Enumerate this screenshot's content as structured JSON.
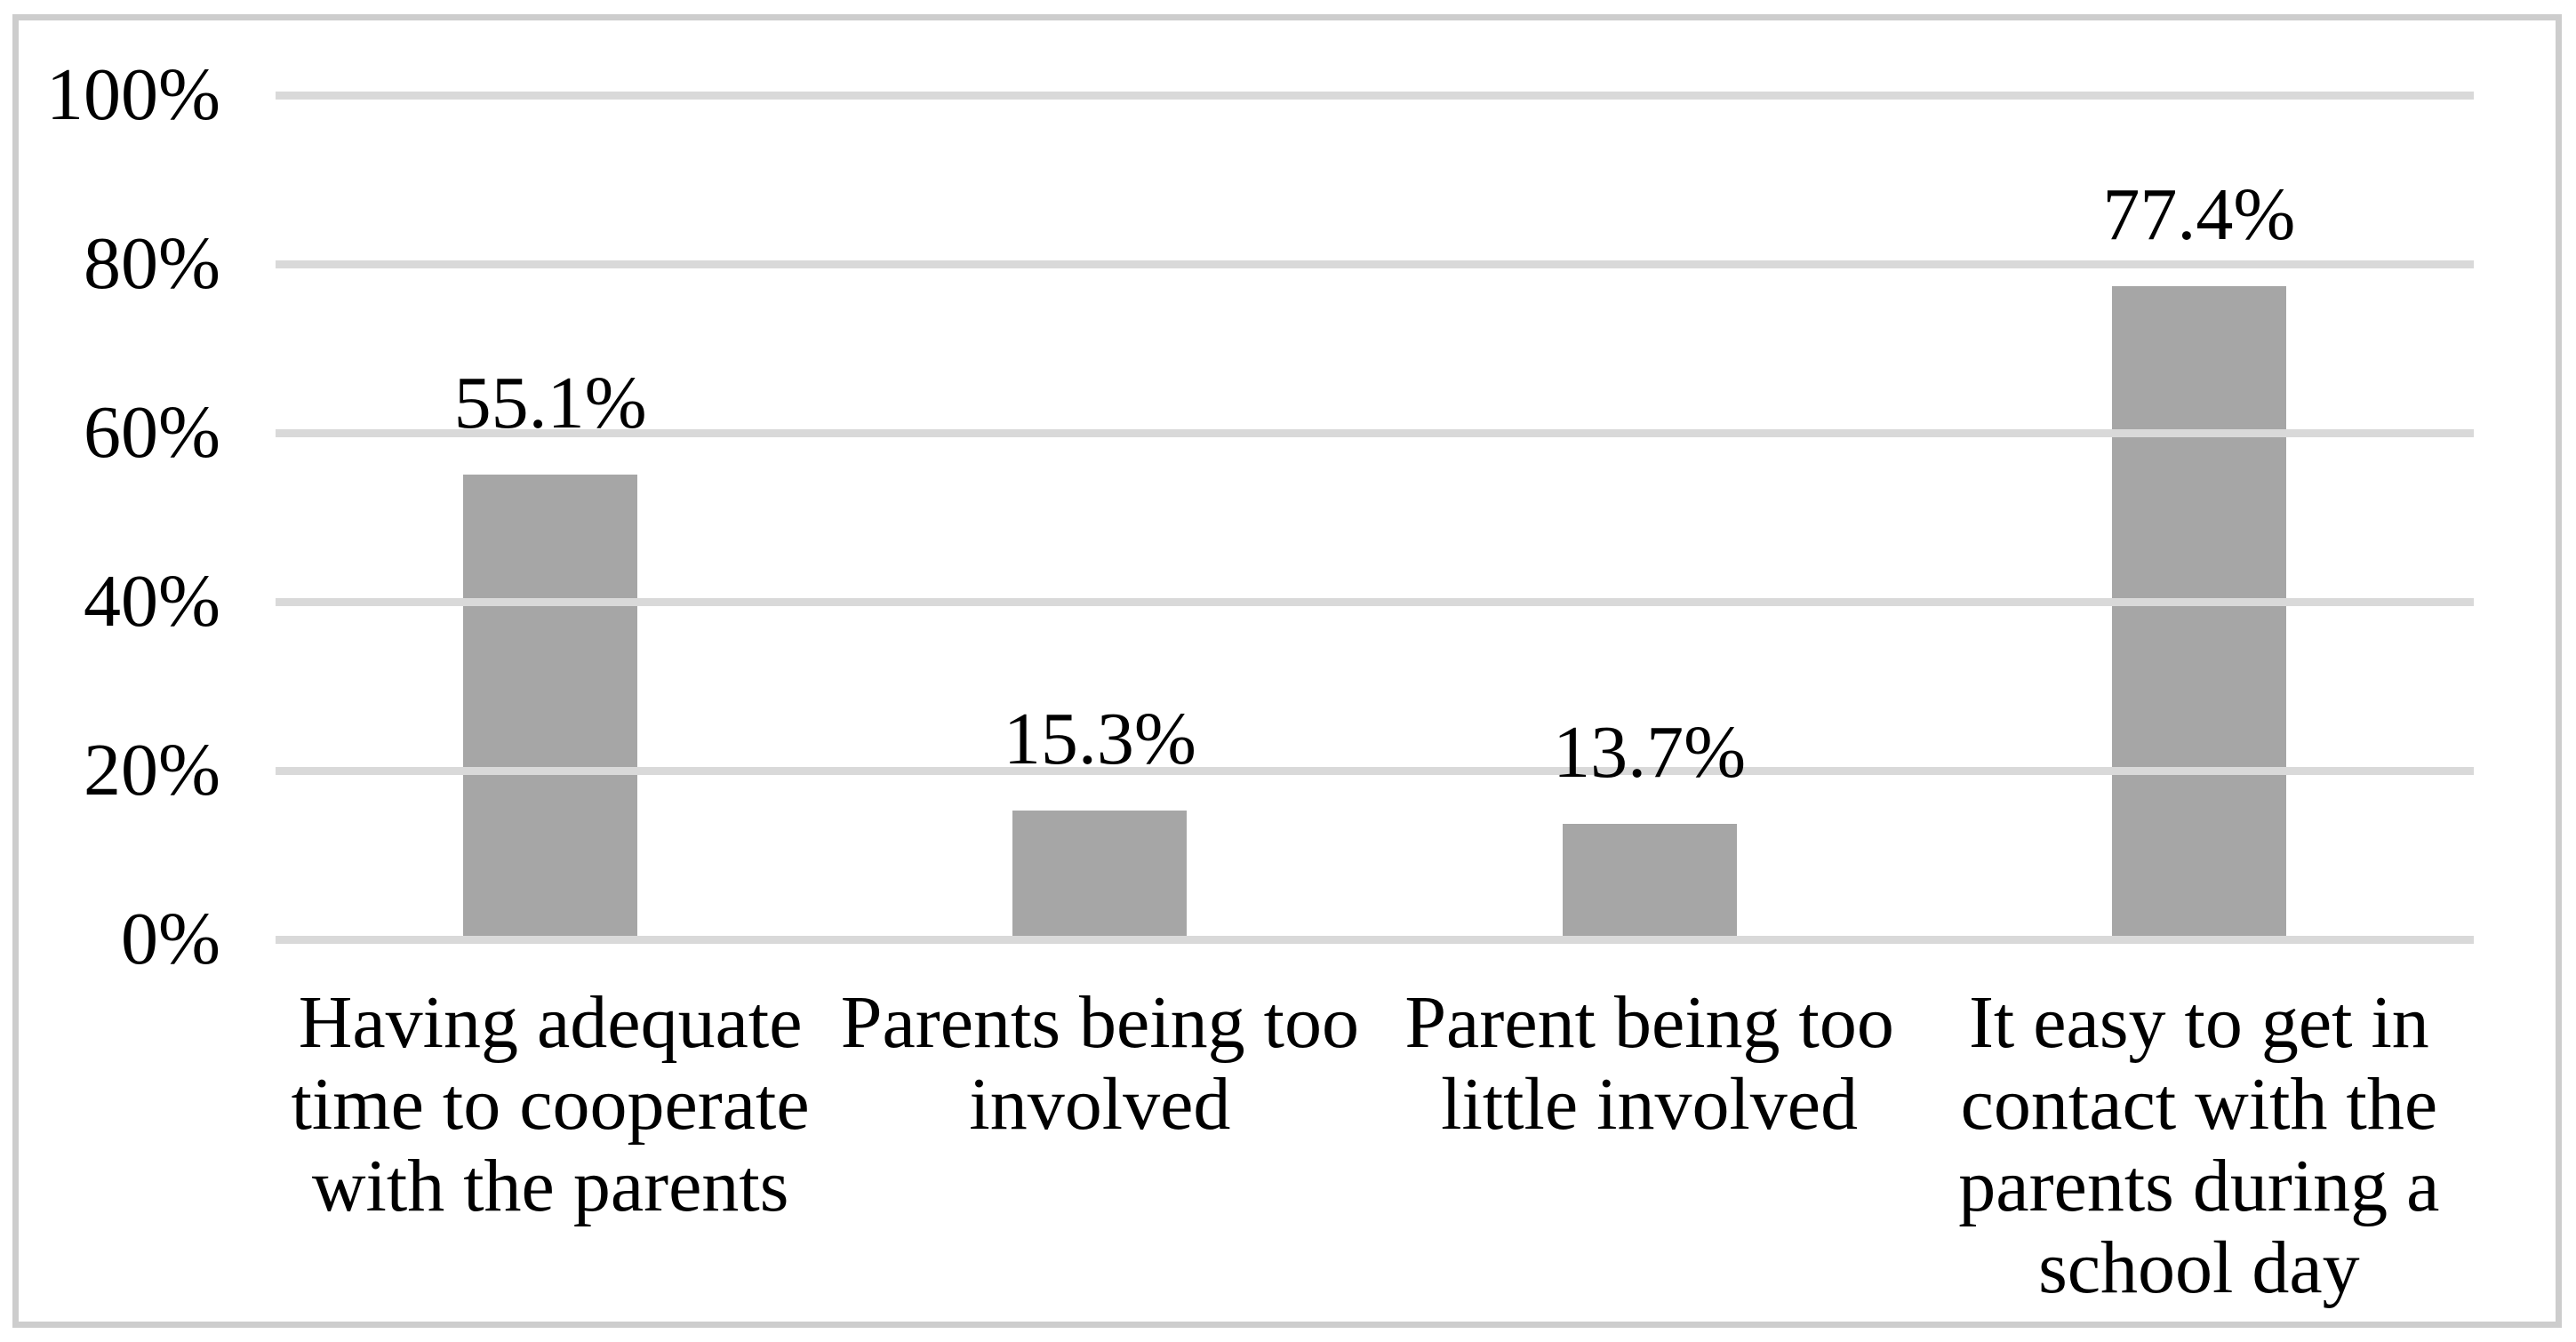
{
  "figure": {
    "background": "#ffffff",
    "frame_border_color": "#cdcdcd"
  },
  "chart_data": {
    "type": "bar",
    "title": "",
    "xlabel": "",
    "ylabel": "",
    "categories": [
      "Having adequate time to cooperate with the parents",
      "Parents being too involved",
      "Parent being too little involved",
      "It easy to get in contact with the parents during a school day"
    ],
    "category_lines": [
      [
        "Having adequate",
        "time to cooperate",
        "with the parents"
      ],
      [
        "Parents being too",
        "involved"
      ],
      [
        "Parent being too",
        "little involved"
      ],
      [
        "It easy to get in",
        "contact with the",
        "parents during a",
        "school day"
      ]
    ],
    "values": [
      55.1,
      15.3,
      13.7,
      77.4
    ],
    "value_labels": [
      "55.1%",
      "15.3%",
      "13.7%",
      "77.4%"
    ],
    "ylim": [
      0,
      100
    ],
    "yticks": [
      {
        "value": 100,
        "label": "100%"
      },
      {
        "value": 80,
        "label": "80%"
      },
      {
        "value": 60,
        "label": "60%"
      },
      {
        "value": 40,
        "label": "40%"
      },
      {
        "value": 20,
        "label": "20%"
      },
      {
        "value": 0,
        "label": "0%"
      }
    ],
    "grid": "horizontal",
    "legend_position": "none",
    "colors": {
      "bar": "#a6a6a6",
      "gridline": "#d9d9d9",
      "axis_line": "#d9d9d9",
      "label_text": "#000000"
    }
  }
}
